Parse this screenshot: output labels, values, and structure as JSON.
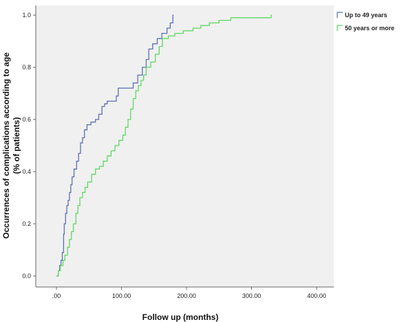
{
  "chart_data": {
    "type": "line",
    "title": "",
    "xlabel": "Follow up (months)",
    "ylabel_line1": "Occurrences of complications according to age",
    "ylabel_line2": "(% of patients)",
    "xlim": [
      0,
      400
    ],
    "ylim": [
      0,
      1.0
    ],
    "x_ticks": [
      0,
      100,
      200,
      300,
      400
    ],
    "x_tick_labels": [
      ".00",
      "100.00",
      "200.00",
      "300.00",
      "400.00"
    ],
    "y_ticks": [
      0,
      0.2,
      0.4,
      0.6,
      0.8,
      1.0
    ],
    "y_tick_labels": [
      "0.0",
      "0.2",
      "0.4",
      "0.6",
      "0.8",
      "1.0"
    ],
    "grid": false,
    "legend_position": "top-right-outside",
    "series": [
      {
        "name": "Up to 49 years",
        "color": "#5a6fb5",
        "step": true,
        "points": [
          [
            0,
            0.0
          ],
          [
            3,
            0.02
          ],
          [
            5,
            0.04
          ],
          [
            7,
            0.06
          ],
          [
            9,
            0.09
          ],
          [
            11,
            0.16
          ],
          [
            12,
            0.2
          ],
          [
            14,
            0.24
          ],
          [
            16,
            0.27
          ],
          [
            18,
            0.29
          ],
          [
            20,
            0.32
          ],
          [
            22,
            0.35
          ],
          [
            24,
            0.38
          ],
          [
            27,
            0.41
          ],
          [
            31,
            0.44
          ],
          [
            34,
            0.47
          ],
          [
            37,
            0.51
          ],
          [
            40,
            0.53
          ],
          [
            43,
            0.56
          ],
          [
            47,
            0.58
          ],
          [
            53,
            0.59
          ],
          [
            60,
            0.6
          ],
          [
            65,
            0.62
          ],
          [
            70,
            0.65
          ],
          [
            74,
            0.66
          ],
          [
            78,
            0.67
          ],
          [
            92,
            0.69
          ],
          [
            95,
            0.72
          ],
          [
            115,
            0.72
          ],
          [
            118,
            0.74
          ],
          [
            125,
            0.77
          ],
          [
            132,
            0.8
          ],
          [
            138,
            0.83
          ],
          [
            142,
            0.87
          ],
          [
            148,
            0.89
          ],
          [
            155,
            0.91
          ],
          [
            162,
            0.93
          ],
          [
            170,
            0.95
          ],
          [
            175,
            0.97
          ],
          [
            179,
            1.0
          ],
          [
            180,
            1.0
          ]
        ]
      },
      {
        "name": "50 years or more",
        "color": "#5ed860",
        "step": true,
        "points": [
          [
            0,
            0.0
          ],
          [
            3,
            0.02
          ],
          [
            6,
            0.04
          ],
          [
            10,
            0.06
          ],
          [
            13,
            0.08
          ],
          [
            17,
            0.11
          ],
          [
            20,
            0.14
          ],
          [
            23,
            0.17
          ],
          [
            26,
            0.2
          ],
          [
            30,
            0.24
          ],
          [
            33,
            0.27
          ],
          [
            36,
            0.3
          ],
          [
            40,
            0.32
          ],
          [
            44,
            0.34
          ],
          [
            48,
            0.36
          ],
          [
            54,
            0.39
          ],
          [
            60,
            0.41
          ],
          [
            66,
            0.42
          ],
          [
            72,
            0.44
          ],
          [
            78,
            0.46
          ],
          [
            84,
            0.48
          ],
          [
            90,
            0.5
          ],
          [
            96,
            0.52
          ],
          [
            102,
            0.54
          ],
          [
            106,
            0.57
          ],
          [
            110,
            0.6
          ],
          [
            114,
            0.64
          ],
          [
            118,
            0.68
          ],
          [
            122,
            0.71
          ],
          [
            126,
            0.73
          ],
          [
            130,
            0.75
          ],
          [
            134,
            0.77
          ],
          [
            138,
            0.8
          ],
          [
            145,
            0.82
          ],
          [
            152,
            0.85
          ],
          [
            158,
            0.88
          ],
          [
            163,
            0.91
          ],
          [
            172,
            0.92
          ],
          [
            182,
            0.93
          ],
          [
            195,
            0.94
          ],
          [
            210,
            0.95
          ],
          [
            222,
            0.96
          ],
          [
            235,
            0.97
          ],
          [
            250,
            0.98
          ],
          [
            268,
            0.99
          ],
          [
            300,
            0.99
          ],
          [
            330,
            1.0
          ],
          [
            331,
            1.0
          ]
        ]
      }
    ]
  }
}
